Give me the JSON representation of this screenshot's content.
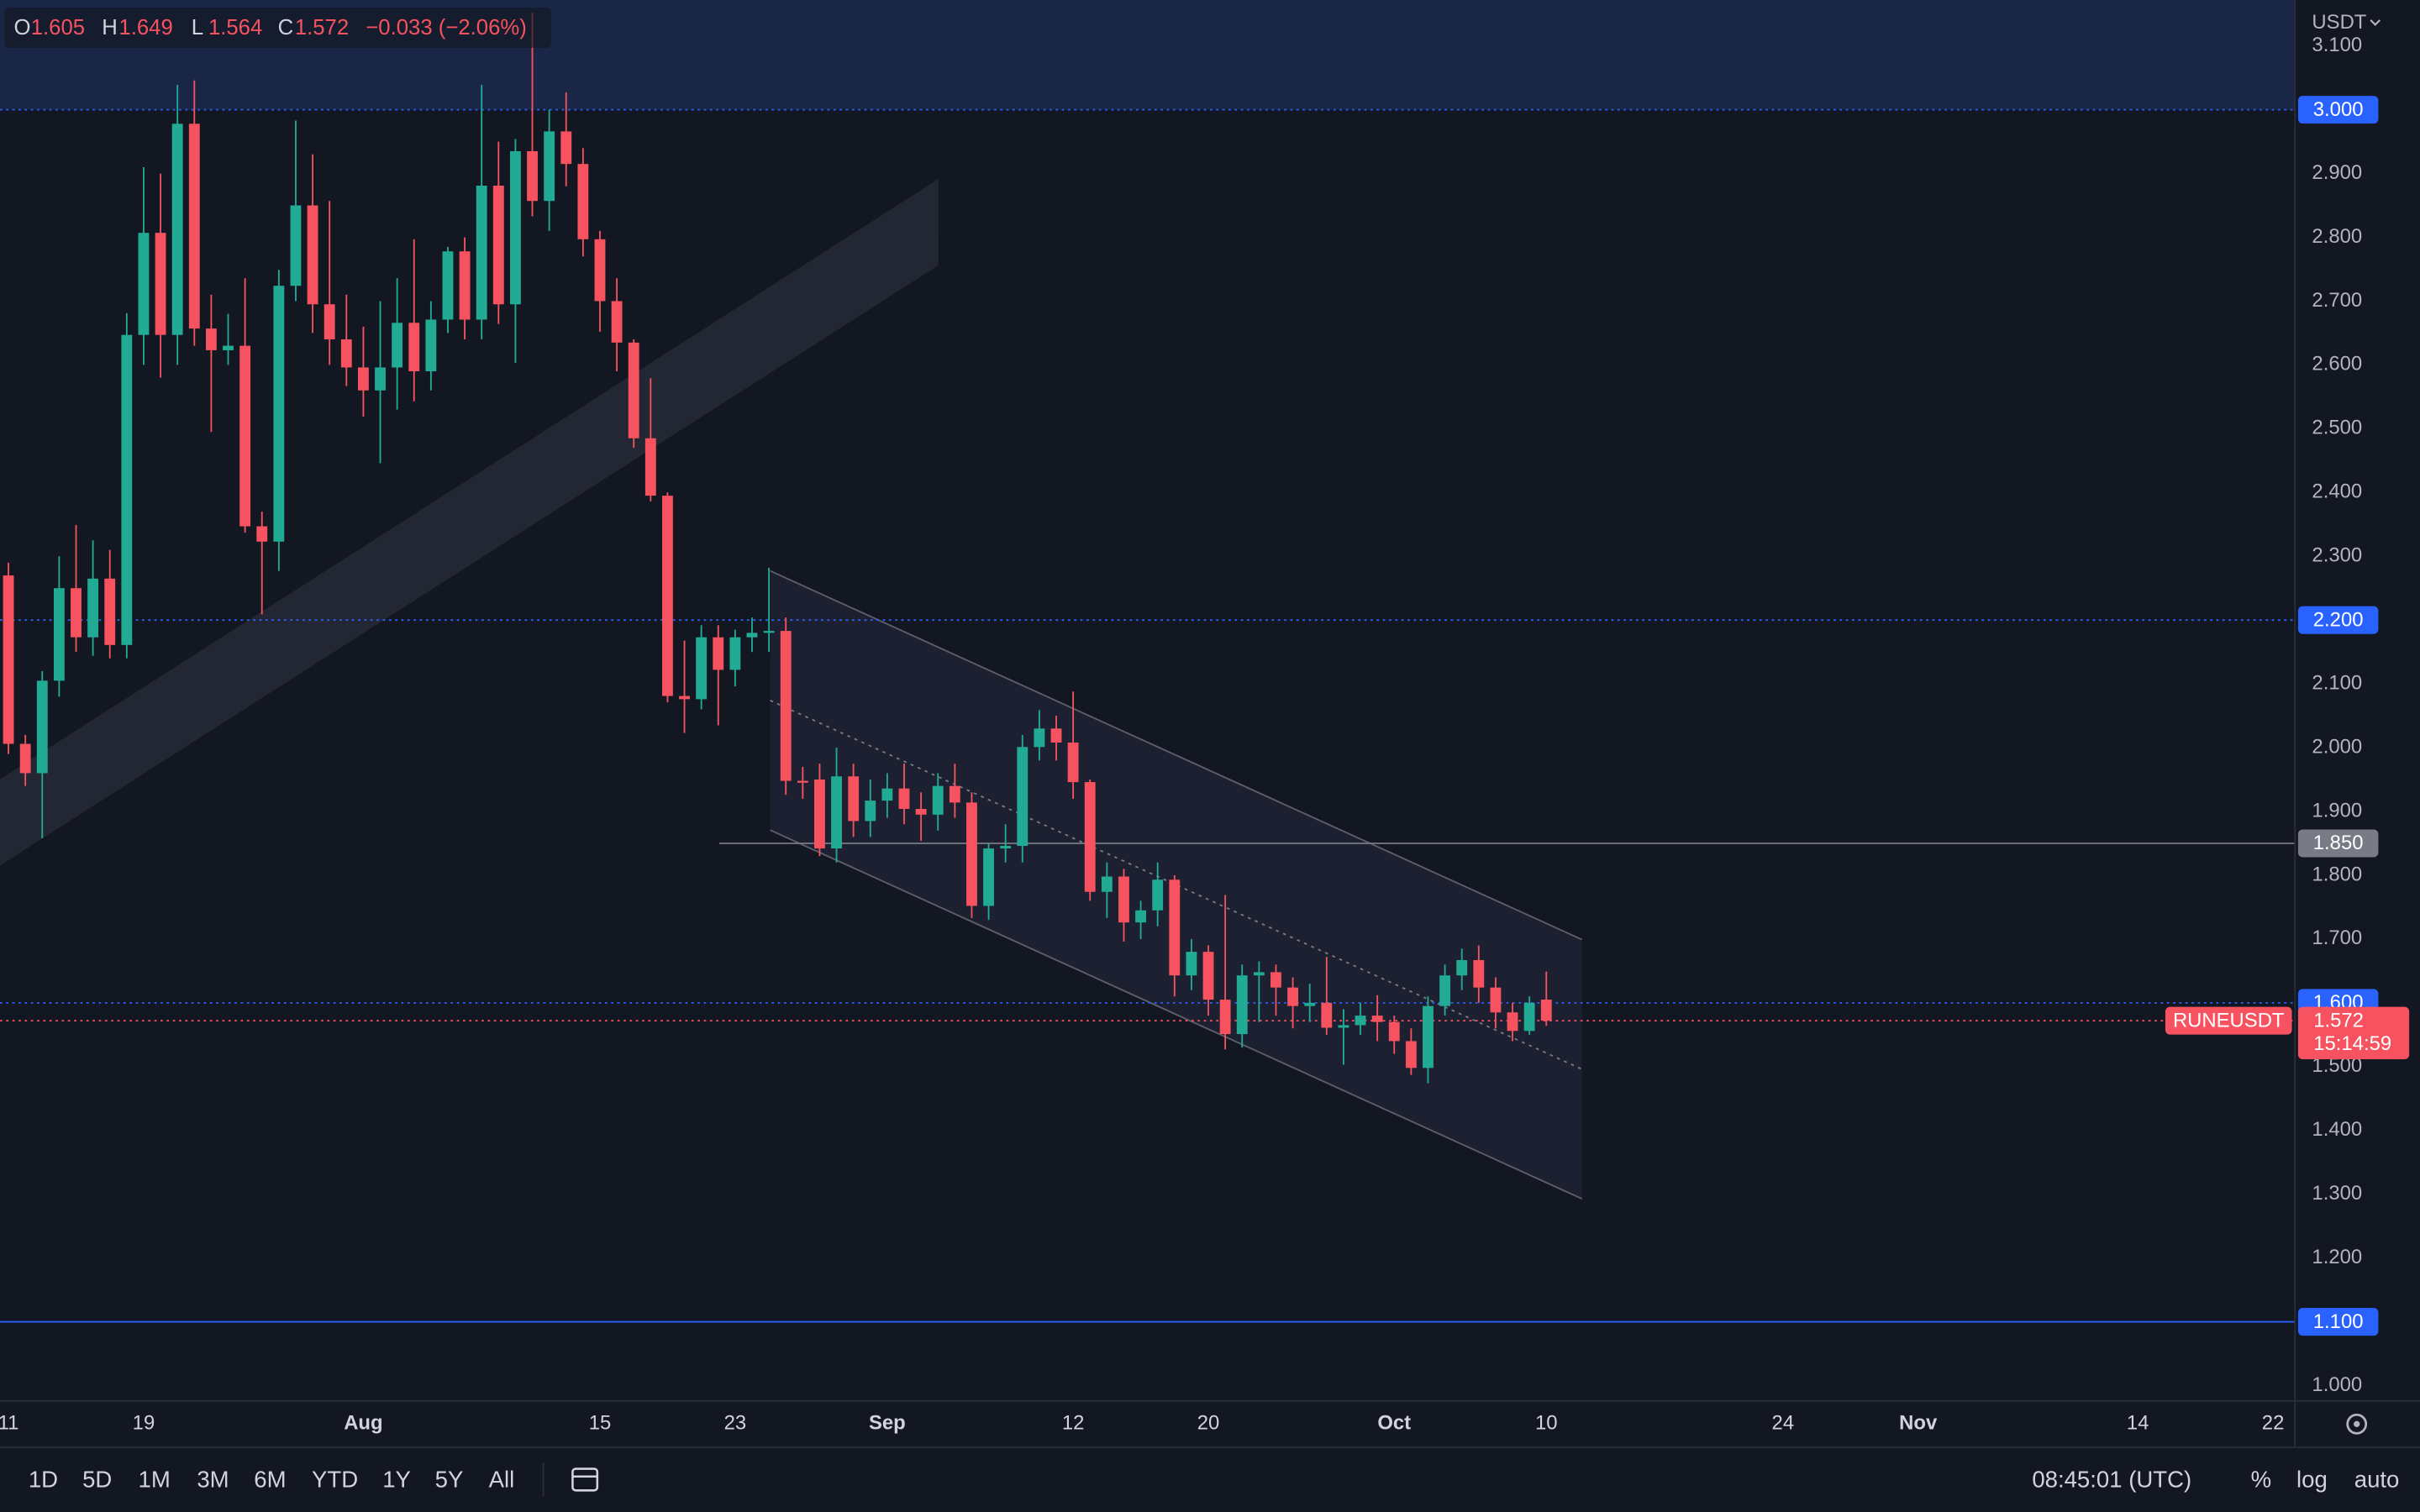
{
  "chart_data": {
    "type": "candlestick",
    "symbol": "RUNEUSDT",
    "currency": "USDT",
    "countdown": "15:14:59",
    "ohlc_labels": [
      "O",
      "H",
      "L",
      "C"
    ],
    "change": "−0.033 (−2.06%)",
    "up_color": "#22ab94",
    "down_color": "#f7525f",
    "open": [
      2.27,
      2.006,
      1.96,
      2.105,
      2.25,
      2.173,
      2.265,
      2.161,
      2.647,
      2.807,
      2.647,
      2.978,
      2.657,
      2.623,
      2.63,
      2.347,
      2.323,
      2.724,
      2.85,
      2.695,
      2.64,
      2.596,
      2.56,
      2.596,
      2.666,
      2.59,
      2.671,
      2.778,
      2.671,
      2.881,
      2.695,
      2.935,
      2.857,
      2.966,
      2.915,
      2.797,
      2.7,
      2.635,
      2.485,
      2.395,
      2.081,
      2.076,
      2.173,
      2.122,
      2.173,
      2.18,
      2.183,
      1.948,
      1.95,
      1.842,
      1.955,
      1.885,
      1.917,
      1.936,
      1.904,
      1.895,
      1.94,
      1.914,
      1.752,
      1.842,
      1.846,
      2.001,
      2.03,
      2.008,
      1.946,
      1.774,
      1.798,
      1.726,
      1.745,
      1.793,
      1.643,
      1.68,
      1.605,
      1.551,
      1.643,
      1.648,
      1.624,
      1.595,
      1.6,
      1.561,
      1.565,
      1.58,
      1.57,
      1.54,
      1.498,
      1.595,
      1.643,
      1.667,
      1.624,
      1.585,
      1.556,
      1.605
    ],
    "high": [
      2.29,
      2.02,
      2.12,
      2.3,
      2.349,
      2.325,
      2.31,
      2.681,
      2.91,
      2.9,
      3.039,
      3.046,
      2.71,
      2.68,
      2.736,
      2.37,
      2.749,
      2.983,
      2.93,
      2.857,
      2.71,
      2.66,
      2.7,
      2.736,
      2.797,
      2.7,
      2.785,
      2.8,
      3.039,
      2.95,
      2.954,
      3.152,
      3.0,
      3.027,
      2.94,
      2.81,
      2.736,
      2.64,
      2.579,
      2.4,
      2.168,
      2.192,
      2.192,
      2.185,
      2.204,
      2.282,
      2.204,
      1.97,
      1.975,
      2.0,
      1.975,
      1.95,
      1.96,
      1.975,
      1.93,
      1.96,
      1.975,
      1.93,
      1.85,
      1.88,
      2.02,
      2.059,
      2.05,
      2.088,
      1.95,
      1.82,
      1.81,
      1.76,
      1.82,
      1.8,
      1.7,
      1.69,
      1.769,
      1.66,
      1.665,
      1.66,
      1.64,
      1.63,
      1.672,
      1.59,
      1.6,
      1.612,
      1.58,
      1.56,
      1.61,
      1.66,
      1.685,
      1.69,
      1.64,
      1.6,
      1.61,
      1.649
    ],
    "low": [
      1.99,
      1.94,
      1.858,
      2.08,
      2.15,
      2.144,
      2.14,
      2.14,
      2.6,
      2.58,
      2.6,
      2.63,
      2.495,
      2.6,
      2.337,
      2.209,
      2.277,
      2.7,
      2.65,
      2.6,
      2.567,
      2.519,
      2.446,
      2.53,
      2.543,
      2.56,
      2.65,
      2.64,
      2.64,
      2.664,
      2.603,
      2.833,
      2.81,
      2.88,
      2.77,
      2.652,
      2.59,
      2.47,
      2.386,
      2.071,
      2.023,
      2.06,
      2.035,
      2.096,
      2.15,
      2.15,
      1.926,
      1.92,
      1.83,
      1.82,
      1.86,
      1.86,
      1.89,
      1.88,
      1.854,
      1.87,
      1.89,
      1.733,
      1.73,
      1.82,
      1.82,
      1.98,
      1.98,
      1.92,
      1.76,
      1.733,
      1.696,
      1.7,
      1.72,
      1.61,
      1.62,
      1.58,
      1.527,
      1.53,
      1.57,
      1.58,
      1.56,
      1.57,
      1.55,
      1.503,
      1.55,
      1.54,
      1.52,
      1.487,
      1.474,
      1.58,
      1.62,
      1.6,
      1.56,
      1.54,
      1.55,
      1.564
    ],
    "close": [
      2.006,
      1.96,
      2.105,
      2.25,
      2.173,
      2.265,
      2.161,
      2.647,
      2.807,
      2.647,
      2.978,
      2.657,
      2.623,
      2.63,
      2.347,
      2.323,
      2.724,
      2.85,
      2.695,
      2.64,
      2.596,
      2.56,
      2.596,
      2.666,
      2.59,
      2.671,
      2.778,
      2.671,
      2.881,
      2.695,
      2.935,
      2.857,
      2.966,
      2.915,
      2.797,
      2.7,
      2.635,
      2.485,
      2.395,
      2.081,
      2.076,
      2.173,
      2.122,
      2.173,
      2.18,
      2.183,
      1.948,
      1.945,
      1.842,
      1.955,
      1.885,
      1.917,
      1.936,
      1.904,
      1.895,
      1.94,
      1.914,
      1.752,
      1.842,
      1.846,
      2.001,
      2.03,
      2.008,
      1.946,
      1.774,
      1.798,
      1.726,
      1.745,
      1.793,
      1.643,
      1.68,
      1.605,
      1.551,
      1.643,
      1.648,
      1.624,
      1.595,
      1.6,
      1.561,
      1.565,
      1.58,
      1.57,
      1.54,
      1.498,
      1.595,
      1.643,
      1.667,
      1.624,
      1.585,
      1.556,
      1.6,
      1.572
    ],
    "xlim": [
      -0.5,
      135.3
    ],
    "xticks": [
      {
        "value": 0,
        "label": "11"
      },
      {
        "value": 8,
        "label": "19"
      },
      {
        "value": 21,
        "label": "Aug"
      },
      {
        "value": 35,
        "label": "15"
      },
      {
        "value": 43,
        "label": "23"
      },
      {
        "value": 52,
        "label": "Sep"
      },
      {
        "value": 63,
        "label": "12"
      },
      {
        "value": 71,
        "label": "20"
      },
      {
        "value": 82,
        "label": "Oct"
      },
      {
        "value": 91,
        "label": "10"
      },
      {
        "value": 105,
        "label": "24"
      },
      {
        "value": 113,
        "label": "Nov"
      },
      {
        "value": 126,
        "label": "14"
      },
      {
        "value": 134,
        "label": "22"
      }
    ],
    "ylim": [
      0.976,
      3.172
    ],
    "yticks": [
      {
        "value": 3.1,
        "label": "3.100"
      },
      {
        "value": 2.9,
        "label": "2.900"
      },
      {
        "value": 2.8,
        "label": "2.800"
      },
      {
        "value": 2.7,
        "label": "2.700"
      },
      {
        "value": 2.6,
        "label": "2.600"
      },
      {
        "value": 2.5,
        "label": "2.500"
      },
      {
        "value": 2.4,
        "label": "2.400"
      },
      {
        "value": 2.3,
        "label": "2.300"
      },
      {
        "value": 2.1,
        "label": "2.100"
      },
      {
        "value": 2,
        "label": "2.000"
      },
      {
        "value": 1.9,
        "label": "1.900"
      },
      {
        "value": 1.8,
        "label": "1.800"
      },
      {
        "value": 1.7,
        "label": "1.700"
      },
      {
        "value": 1.5,
        "label": "1.500"
      },
      {
        "value": 1.4,
        "label": "1.400"
      },
      {
        "value": 1.3,
        "label": "1.300"
      },
      {
        "value": 1.2,
        "label": "1.200"
      },
      {
        "value": 1,
        "label": "1.000"
      }
    ],
    "levels": [
      {
        "value": 3,
        "label": "3.000",
        "color": "#2962ff",
        "style": "dotted"
      },
      {
        "value": 2.2,
        "label": "2.200",
        "color": "#2962ff",
        "style": "dotted"
      },
      {
        "value": 1.85,
        "label": "1.850",
        "color": "#787b86",
        "style": "solid"
      },
      {
        "value": 1.6,
        "label": "1.600",
        "color": "#2962ff",
        "style": "dotted"
      },
      {
        "value": 1.1,
        "label": "1.100",
        "color": "#2962ff",
        "style": "solid"
      }
    ],
    "grid": false
  },
  "toolbar": {
    "ranges": [
      "1D",
      "5D",
      "1M",
      "3M",
      "6M",
      "YTD",
      "1Y",
      "5Y",
      "All"
    ],
    "time": "08:45:01 (UTC)",
    "options": [
      "%",
      "log",
      "auto"
    ]
  }
}
